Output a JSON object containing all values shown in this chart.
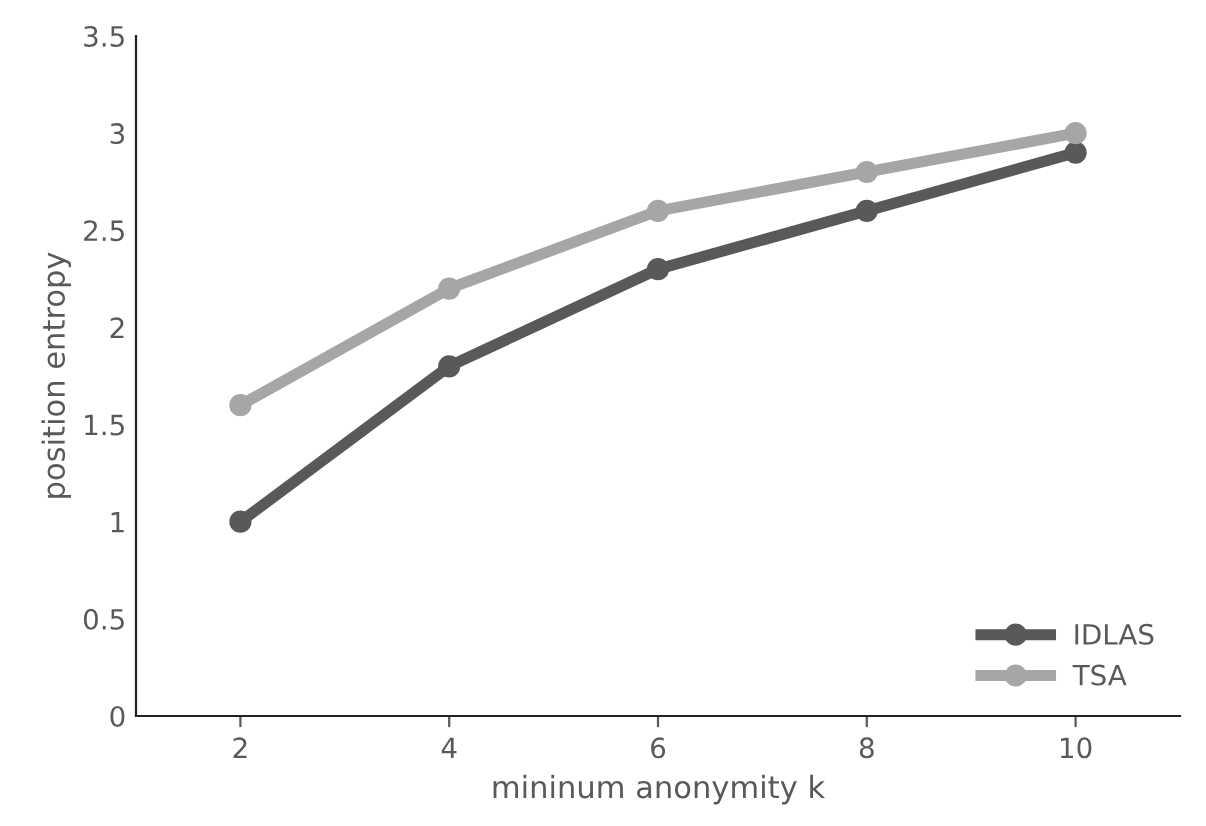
{
  "chart_data": {
    "type": "line",
    "xlabel": "mininum anonymity k",
    "ylabel": "position entropy",
    "categories": [
      "2",
      "4",
      "6",
      "8",
      "10"
    ],
    "series": [
      {
        "name": "IDLAS",
        "color": "#595959",
        "values": [
          1.0,
          1.8,
          2.3,
          2.6,
          2.9
        ]
      },
      {
        "name": "TSA",
        "color": "#a6a6a6",
        "values": [
          1.6,
          2.2,
          2.6,
          2.8,
          3.0
        ]
      }
    ],
    "ylim": [
      0,
      3.5
    ],
    "yticks": [
      0,
      0.5,
      1,
      1.5,
      2,
      2.5,
      3,
      3.5
    ],
    "grid": false,
    "legend": "bottom right",
    "marker": "circle",
    "line_style": "solid"
  }
}
